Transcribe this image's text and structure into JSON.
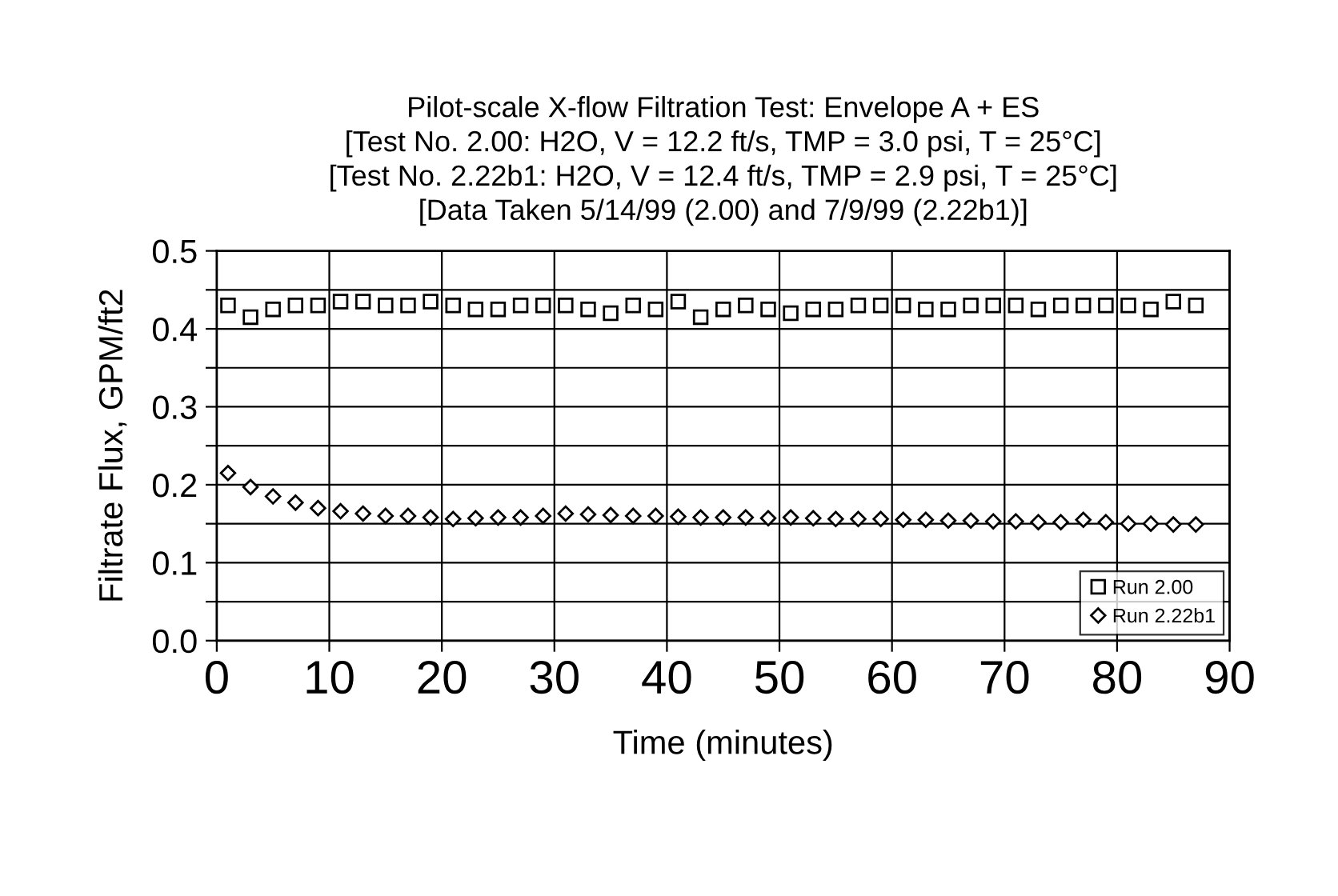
{
  "chart_data": {
    "type": "scatter",
    "title": "Pilot-scale X-flow Filtration Test: Envelope A + ES\n[Test No. 2.00: H2O, V = 12.2 ft/s, TMP = 3.0 psi, T = 25°C]\n[Test No. 2.22b1: H2O, V = 12.4 ft/s, TMP = 2.9 psi, T = 25°C]\n[Data Taken 5/14/99 (2.00) and 7/9/99 (2.22b1)]",
    "xlabel": "Time (minutes)",
    "ylabel": "Filtrate Flux, GPM/ft2",
    "x": [
      1,
      3,
      5,
      7,
      9,
      11,
      13,
      15,
      17,
      19,
      21,
      23,
      25,
      27,
      29,
      31,
      33,
      35,
      37,
      39,
      41,
      43,
      45,
      47,
      49,
      51,
      53,
      55,
      57,
      59,
      61,
      63,
      65,
      67,
      69,
      71,
      73,
      75,
      77,
      79,
      81,
      83,
      85,
      87
    ],
    "series": [
      {
        "name": "Run 2.00",
        "color": "#000000",
        "marker": "square",
        "values": [
          0.43,
          0.415,
          0.425,
          0.43,
          0.43,
          0.435,
          0.435,
          0.43,
          0.43,
          0.435,
          0.43,
          0.425,
          0.425,
          0.43,
          0.43,
          0.43,
          0.425,
          0.42,
          0.43,
          0.425,
          0.435,
          0.415,
          0.425,
          0.43,
          0.425,
          0.42,
          0.425,
          0.425,
          0.43,
          0.43,
          0.43,
          0.425,
          0.425,
          0.43,
          0.43,
          0.43,
          0.425,
          0.43,
          0.43,
          0.43,
          0.43,
          0.425,
          0.435,
          0.43
        ]
      },
      {
        "name": "Run 2.22b1",
        "color": "#000000",
        "marker": "diamond",
        "values": [
          0.215,
          0.197,
          0.185,
          0.177,
          0.17,
          0.166,
          0.163,
          0.16,
          0.16,
          0.158,
          0.156,
          0.157,
          0.158,
          0.158,
          0.16,
          0.163,
          0.162,
          0.161,
          0.16,
          0.16,
          0.159,
          0.158,
          0.158,
          0.158,
          0.157,
          0.158,
          0.157,
          0.156,
          0.156,
          0.156,
          0.155,
          0.155,
          0.154,
          0.154,
          0.153,
          0.153,
          0.152,
          0.152,
          0.155,
          0.152,
          0.15,
          0.15,
          0.149,
          0.149
        ]
      }
    ],
    "xlim": [
      0,
      90
    ],
    "xticks": [
      0,
      10,
      20,
      30,
      40,
      50,
      60,
      70,
      80,
      90
    ],
    "ylim": [
      0,
      0.5
    ],
    "yticks": [
      {
        "value": 0,
        "label": "0.0"
      },
      {
        "value": 0.05,
        "label": null
      },
      {
        "value": 0.1,
        "label": "0.1"
      },
      {
        "value": 0.15,
        "label": null
      },
      {
        "value": 0.2,
        "label": "0.2"
      },
      {
        "value": 0.25,
        "label": null
      },
      {
        "value": 0.3,
        "label": "0.3"
      },
      {
        "value": 0.35,
        "label": null
      },
      {
        "value": 0.4,
        "label": "0.4"
      },
      {
        "value": 0.45,
        "label": null
      },
      {
        "value": 0.5,
        "label": "0.5"
      }
    ],
    "grid": true,
    "legend": "bottom right"
  }
}
